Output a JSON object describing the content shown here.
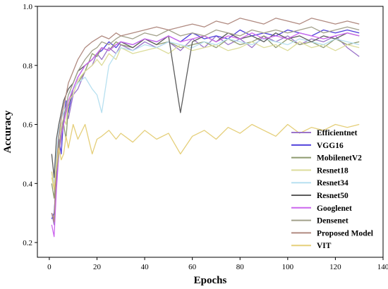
{
  "chart_data": {
    "type": "line",
    "title": "",
    "xlabel": "Epochs",
    "ylabel": "Accuracy",
    "xlim": [
      -5,
      140
    ],
    "ylim": [
      0.15,
      1.0
    ],
    "xticks": [
      "0",
      "20",
      "40",
      "60",
      "80",
      "100",
      "120",
      "140"
    ],
    "yticks": [
      "0.2",
      "0.4",
      "0.6",
      "0.8",
      "1.0"
    ],
    "grid": false,
    "legend_position": "lower-right",
    "x": [
      1,
      2,
      3,
      4,
      5,
      6,
      7,
      8,
      10,
      12,
      15,
      18,
      20,
      22,
      25,
      28,
      30,
      35,
      40,
      45,
      50,
      55,
      60,
      65,
      70,
      75,
      80,
      85,
      90,
      95,
      100,
      105,
      110,
      115,
      120,
      125,
      130
    ],
    "series": [
      {
        "name": "Efficientnet",
        "color": "#9b74c9",
        "values": [
          0.3,
          0.26,
          0.4,
          0.5,
          0.55,
          0.6,
          0.66,
          0.62,
          0.7,
          0.72,
          0.78,
          0.8,
          0.84,
          0.82,
          0.86,
          0.84,
          0.87,
          0.85,
          0.88,
          0.86,
          0.88,
          0.85,
          0.89,
          0.86,
          0.9,
          0.87,
          0.89,
          0.86,
          0.9,
          0.88,
          0.9,
          0.87,
          0.89,
          0.88,
          0.9,
          0.86,
          0.83
        ]
      },
      {
        "name": "VGG16",
        "color": "#4f3fdb",
        "values": [
          0.28,
          0.3,
          0.42,
          0.55,
          0.5,
          0.62,
          0.68,
          0.64,
          0.72,
          0.76,
          0.8,
          0.82,
          0.84,
          0.85,
          0.88,
          0.86,
          0.88,
          0.87,
          0.89,
          0.88,
          0.9,
          0.88,
          0.91,
          0.89,
          0.9,
          0.89,
          0.92,
          0.9,
          0.91,
          0.9,
          0.92,
          0.91,
          0.9,
          0.92,
          0.91,
          0.92,
          0.91
        ]
      },
      {
        "name": "MobilenetV2",
        "color": "#8e9a6e",
        "values": [
          0.4,
          0.35,
          0.46,
          0.52,
          0.58,
          0.6,
          0.55,
          0.66,
          0.72,
          0.74,
          0.78,
          0.84,
          0.83,
          0.86,
          0.85,
          0.88,
          0.87,
          0.86,
          0.89,
          0.87,
          0.88,
          0.86,
          0.87,
          0.88,
          0.86,
          0.89,
          0.87,
          0.88,
          0.9,
          0.86,
          0.89,
          0.87,
          0.88,
          0.86,
          0.89,
          0.87,
          0.88
        ]
      },
      {
        "name": "Resnet18",
        "color": "#dcdc9a",
        "values": [
          0.42,
          0.38,
          0.5,
          0.56,
          0.6,
          0.62,
          0.6,
          0.68,
          0.7,
          0.75,
          0.78,
          0.8,
          0.82,
          0.8,
          0.84,
          0.82,
          0.86,
          0.84,
          0.85,
          0.86,
          0.84,
          0.87,
          0.85,
          0.86,
          0.87,
          0.85,
          0.86,
          0.88,
          0.86,
          0.87,
          0.85,
          0.88,
          0.86,
          0.87,
          0.85,
          0.87,
          0.86
        ]
      },
      {
        "name": "Resnet34",
        "color": "#b7e0f0",
        "values": [
          0.44,
          0.4,
          0.5,
          0.58,
          0.62,
          0.64,
          0.66,
          0.7,
          0.72,
          0.74,
          0.76,
          0.72,
          0.7,
          0.64,
          0.8,
          0.84,
          0.86,
          0.85,
          0.87,
          0.86,
          0.88,
          0.87,
          0.86,
          0.88,
          0.87,
          0.89,
          0.88,
          0.87,
          0.89,
          0.88,
          0.87,
          0.89,
          0.88,
          0.87,
          0.89,
          0.88,
          0.87
        ]
      },
      {
        "name": "Resnet50",
        "color": "#5c5c5c",
        "values": [
          0.5,
          0.42,
          0.55,
          0.6,
          0.64,
          0.68,
          0.7,
          0.72,
          0.74,
          0.78,
          0.8,
          0.82,
          0.84,
          0.86,
          0.85,
          0.87,
          0.88,
          0.86,
          0.89,
          0.87,
          0.9,
          0.64,
          0.88,
          0.9,
          0.88,
          0.91,
          0.89,
          0.9,
          0.88,
          0.91,
          0.89,
          0.9,
          0.88,
          0.9,
          0.89,
          0.91,
          0.9
        ]
      },
      {
        "name": "Googlenet",
        "color": "#cc66ee",
        "values": [
          0.26,
          0.22,
          0.38,
          0.5,
          0.56,
          0.6,
          0.64,
          0.68,
          0.72,
          0.76,
          0.8,
          0.82,
          0.84,
          0.86,
          0.85,
          0.87,
          0.88,
          0.87,
          0.89,
          0.88,
          0.9,
          0.88,
          0.89,
          0.9,
          0.88,
          0.9,
          0.89,
          0.91,
          0.89,
          0.9,
          0.89,
          0.91,
          0.9,
          0.89,
          0.9,
          0.91,
          0.9
        ]
      },
      {
        "name": "Densenet",
        "color": "#a2a08a",
        "values": [
          0.3,
          0.28,
          0.44,
          0.5,
          0.58,
          0.62,
          0.66,
          0.7,
          0.74,
          0.78,
          0.82,
          0.85,
          0.86,
          0.88,
          0.87,
          0.89,
          0.9,
          0.89,
          0.91,
          0.9,
          0.92,
          0.9,
          0.91,
          0.9,
          0.92,
          0.91,
          0.9,
          0.92,
          0.91,
          0.92,
          0.91,
          0.92,
          0.93,
          0.91,
          0.92,
          0.93,
          0.92
        ]
      },
      {
        "name": "Proposed Model",
        "color": "#b08a80",
        "values": [
          0.3,
          0.27,
          0.46,
          0.56,
          0.62,
          0.66,
          0.7,
          0.74,
          0.78,
          0.82,
          0.86,
          0.88,
          0.89,
          0.9,
          0.89,
          0.91,
          0.9,
          0.91,
          0.92,
          0.93,
          0.92,
          0.93,
          0.94,
          0.93,
          0.95,
          0.94,
          0.96,
          0.95,
          0.94,
          0.96,
          0.95,
          0.94,
          0.96,
          0.95,
          0.94,
          0.95,
          0.94
        ]
      },
      {
        "name": "VIT",
        "color": "#e5cf7a",
        "values": [
          0.44,
          0.38,
          0.46,
          0.52,
          0.48,
          0.5,
          0.56,
          0.52,
          0.6,
          0.55,
          0.6,
          0.5,
          0.55,
          0.56,
          0.58,
          0.55,
          0.57,
          0.54,
          0.58,
          0.55,
          0.57,
          0.5,
          0.56,
          0.58,
          0.55,
          0.59,
          0.57,
          0.6,
          0.58,
          0.56,
          0.6,
          0.57,
          0.59,
          0.58,
          0.6,
          0.59,
          0.6
        ]
      }
    ]
  }
}
